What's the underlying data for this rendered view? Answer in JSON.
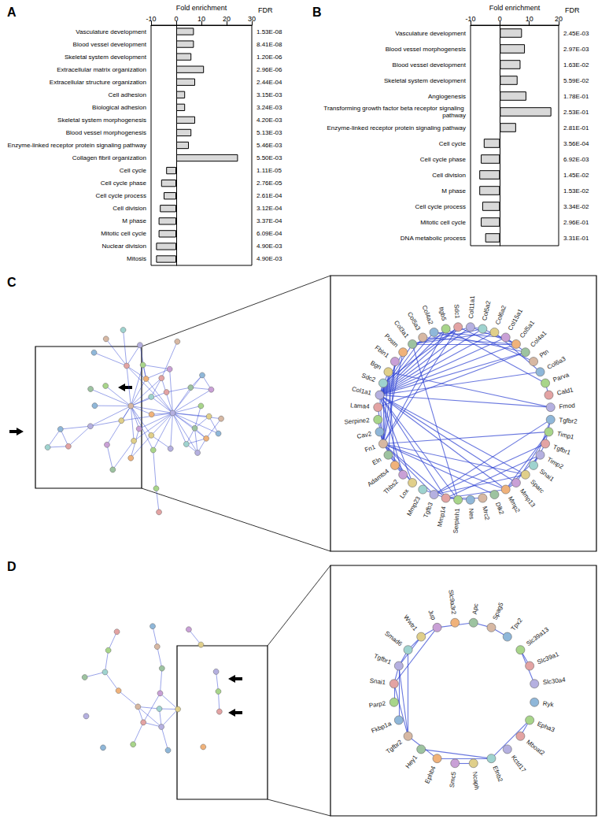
{
  "chart_data": [
    {
      "type": "bar",
      "title": "A",
      "orientation": "horizontal",
      "xlabel": "Fold enrichment",
      "fdr_label": "FDR",
      "categories": [
        "Vasculature development",
        "Blood vessel development",
        "Skeletal system development",
        "Extracellular matrix organization",
        "Extracellular structure organization",
        "Cell adhesion",
        "Biological adhesion",
        "Skeletal system morphogenesis",
        "Blood vessel morphogenesis",
        "Enzyme-linked receptor protein signaling pathway",
        "Collagen fibril organization",
        "Cell cycle",
        "Cell cycle phase",
        "Cell cycle process",
        "Cell division",
        "M phase",
        "Mitotic cell cycle",
        "Nuclear division",
        "Mitosis"
      ],
      "values": [
        7,
        7,
        6,
        11,
        7.5,
        3.5,
        3.5,
        7.5,
        6,
        5,
        24.5,
        -4,
        -6,
        -5,
        -6.5,
        -7,
        -7,
        -8,
        -8
      ],
      "fdr": [
        "1.53E-08",
        "8.41E-08",
        "1.20E-06",
        "2.96E-06",
        "2.44E-04",
        "3.15E-03",
        "3.24E-03",
        "4.20E-03",
        "5.13E-03",
        "5.46E-03",
        "5.50E-03",
        "1.11E-05",
        "2.76E-05",
        "2.61E-04",
        "3.12E-04",
        "3.37E-04",
        "6.09E-04",
        "4.90E-03",
        "4.90E-03"
      ],
      "xlim": [
        -10,
        30
      ],
      "xticks": [
        -10,
        0,
        10,
        20,
        30
      ],
      "color": "#d9d9d9"
    },
    {
      "type": "bar",
      "title": "B",
      "orientation": "horizontal",
      "xlabel": "Fold enrichment",
      "fdr_label": "FDR",
      "categories": [
        "Vasculature development",
        "Blood vessel morphogenesis",
        "Blood vessel development",
        "Skeletal system development",
        "Angiogenesis",
        "Transforming growth factor beta receptor signaling pathway",
        "Enzyme-linked receptor protein signaling pathway",
        "Cell cycle",
        "Cell cycle phase",
        "Cell division",
        "M phase",
        "Cell cycle process",
        "Mitotic cell cycle",
        "DNA metabolic process"
      ],
      "values": [
        7.5,
        8.5,
        7,
        6,
        9,
        17.5,
        5.5,
        -5.5,
        -6.5,
        -7,
        -7,
        -6,
        -6.5,
        -5
      ],
      "fdr": [
        "2.45E-03",
        "2.97E-03",
        "1.63E-02",
        "5.59E-02",
        "1.78E-01",
        "2.53E-01",
        "2.81E-01",
        "3.56E-04",
        "6.92E-03",
        "1.45E-02",
        "1.53E-02",
        "3.34E-02",
        "2.96E-01",
        "3.31E-01"
      ],
      "xlim": [
        -10,
        20
      ],
      "xticks": [
        -10,
        0,
        10,
        20
      ],
      "color": "#d9d9d9"
    },
    {
      "type": "graph",
      "title": "C",
      "color": "#2b3fd1",
      "nodes": [
        "Tgfbr2",
        "Timp1",
        "Tgfbr1",
        "Timp2",
        "Snai1",
        "Sparc",
        "Mmp13",
        "Mmp2",
        "Dlk2",
        "Mrc2",
        "Nes",
        "Serpinh1",
        "Mmp14",
        "Tgfb3",
        "Mmp23",
        "Lox",
        "Thbs2",
        "Adamts4",
        "Eln",
        "Fn1",
        "Cav2",
        "Serpine2",
        "Lama4",
        "Col1a1",
        "Sdc2",
        "Bgn",
        "Fbln1",
        "Postn",
        "Col3a1",
        "Col5a3",
        "Col4a2",
        "Itgb5",
        "Sdc1",
        "Col11a1",
        "Col5a2",
        "Col6a2",
        "Col15a1",
        "Col5a1",
        "Col4a1",
        "Ptn",
        "Col6a3",
        "Parva",
        "Cald1",
        "Fmod"
      ],
      "edges": [
        [
          "Col1a1",
          "Col3a1"
        ],
        [
          "Col1a1",
          "Col5a1"
        ],
        [
          "Col1a1",
          "Col5a2"
        ],
        [
          "Col1a1",
          "Col11a1"
        ],
        [
          "Col1a1",
          "Col4a1"
        ],
        [
          "Col1a1",
          "Col4a2"
        ],
        [
          "Col1a1",
          "Col6a2"
        ],
        [
          "Col1a1",
          "Col6a3"
        ],
        [
          "Col1a1",
          "Col15a1"
        ],
        [
          "Col1a1",
          "Col5a3"
        ],
        [
          "Col1a1",
          "Sdc2"
        ],
        [
          "Col1a1",
          "Fn1"
        ],
        [
          "Col1a1",
          "Sparc"
        ],
        [
          "Col1a1",
          "Bgn"
        ],
        [
          "Col1a1",
          "Postn"
        ],
        [
          "Col1a1",
          "Serpinh1"
        ],
        [
          "Col1a1",
          "Mmp2"
        ],
        [
          "Col1a1",
          "Mmp13"
        ],
        [
          "Col1a1",
          "Mmp14"
        ],
        [
          "Col1a1",
          "Lox"
        ],
        [
          "Col1a1",
          "Thbs2"
        ],
        [
          "Col1a1",
          "Itgb5"
        ],
        [
          "Col1a1",
          "Sdc1"
        ],
        [
          "Col1a1",
          "Fmod"
        ],
        [
          "Col3a1",
          "Col5a1"
        ],
        [
          "Col3a1",
          "Col5a2"
        ],
        [
          "Col5a1",
          "Col5a2"
        ],
        [
          "Col5a1",
          "Col11a1"
        ],
        [
          "Col5a2",
          "Col11a1"
        ],
        [
          "Col4a1",
          "Col4a2"
        ],
        [
          "Col6a2",
          "Col6a3"
        ],
        [
          "Col5a3",
          "Col5a1"
        ],
        [
          "Col15a1",
          "Col4a1"
        ],
        [
          "Col3a1",
          "Col11a1"
        ],
        [
          "Col4a2",
          "Col15a1"
        ],
        [
          "Col6a2",
          "Col3a1"
        ],
        [
          "Fn1",
          "Sdc2"
        ],
        [
          "Fn1",
          "Sdc1"
        ],
        [
          "Fn1",
          "Itgb5"
        ],
        [
          "Fn1",
          "Mmp2"
        ],
        [
          "Fn1",
          "Mmp14"
        ],
        [
          "Fn1",
          "Timp1"
        ],
        [
          "Fn1",
          "Tgfb3"
        ],
        [
          "Fn1",
          "Sparc"
        ],
        [
          "Fn1",
          "Thbs2"
        ],
        [
          "Fn1",
          "Fbln1"
        ],
        [
          "Fn1",
          "Bgn"
        ],
        [
          "Fn1",
          "Lox"
        ],
        [
          "Fn1",
          "Postn"
        ],
        [
          "Fn1",
          "Serpine2"
        ],
        [
          "Fn1",
          "Lama4"
        ],
        [
          "Fn1",
          "Cav2"
        ],
        [
          "Fn1",
          "Dlk2"
        ],
        [
          "Tgfbr1",
          "Tgfbr2"
        ],
        [
          "Tgfbr2",
          "Tgfb3"
        ],
        [
          "Tgfbr1",
          "Tgfb3"
        ],
        [
          "Tgfbr1",
          "Snai1"
        ],
        [
          "Tgfbr2",
          "Snai1"
        ],
        [
          "Timp1",
          "Mmp13"
        ],
        [
          "Timp2",
          "Mmp2"
        ],
        [
          "Timp2",
          "Mmp14"
        ],
        [
          "Mmp2",
          "Mmp14"
        ],
        [
          "Mmp13",
          "Mmp2"
        ],
        [
          "Timp1",
          "Mmp2"
        ],
        [
          "Mrc2",
          "Mmp14"
        ],
        [
          "Nes",
          "Mmp14"
        ],
        [
          "Mmp23",
          "Mmp14"
        ],
        [
          "Serpinh1",
          "Col3a1"
        ],
        [
          "Sdc1",
          "Sdc2"
        ],
        [
          "Parva",
          "Itgb5"
        ],
        [
          "Cald1",
          "Parva"
        ],
        [
          "Eln",
          "Fbln1"
        ],
        [
          "Eln",
          "Lox"
        ],
        [
          "Adamts4",
          "Bgn"
        ],
        [
          "Adamts4",
          "Thbs2"
        ],
        [
          "Ptn",
          "Sdc1"
        ],
        [
          "Lama4",
          "Col4a1"
        ],
        [
          "Sparc",
          "Tgfb3"
        ],
        [
          "Bgn",
          "Fmod"
        ]
      ]
    },
    {
      "type": "graph",
      "title": "D",
      "color": "#2b3fd1",
      "nodes": [
        "Ryk",
        "Epha3",
        "Mboat2",
        "Kctd17",
        "Efnb2",
        "Ncaph",
        "Smc5",
        "Ephb4",
        "Hey1",
        "Tgfbr2",
        "Fkbp1a",
        "Parp2",
        "Snai1",
        "Tgfbr1",
        "Smad6",
        "Wwtr1",
        "Jup",
        "Slc9a3r2",
        "Apc",
        "Spag5",
        "Tpx2",
        "Slc39a13",
        "Slc39a1",
        "Slc30a4"
      ],
      "edges": [
        [
          "Epha3",
          "Mboat2"
        ],
        [
          "Epha3",
          "Efnb2"
        ],
        [
          "Efnb2",
          "Ephb4"
        ],
        [
          "Efnb2",
          "Hey1"
        ],
        [
          "Ephb4",
          "Tgfbr2"
        ],
        [
          "Tgfbr2",
          "Tgfbr1"
        ],
        [
          "Tgfbr2",
          "Snai1"
        ],
        [
          "Tgfbr2",
          "Smad6"
        ],
        [
          "Tgfbr1",
          "Fkbp1a"
        ],
        [
          "Tgfbr1",
          "Smad6"
        ],
        [
          "Tgfbr1",
          "Wwtr1"
        ],
        [
          "Smad6",
          "Wwtr1"
        ],
        [
          "Snai1",
          "Jup"
        ],
        [
          "Jup",
          "Wwtr1"
        ],
        [
          "Jup",
          "Apc"
        ],
        [
          "Apc",
          "Spag5"
        ],
        [
          "Spag5",
          "Tpx2"
        ],
        [
          "Ncaph",
          "Smc5"
        ],
        [
          "Parp2",
          "Snai1"
        ],
        [
          "Slc39a13",
          "Slc39a1"
        ],
        [
          "Slc39a13",
          "Slc30a4"
        ],
        [
          "Snai1",
          "Tgfbr1"
        ]
      ]
    }
  ]
}
